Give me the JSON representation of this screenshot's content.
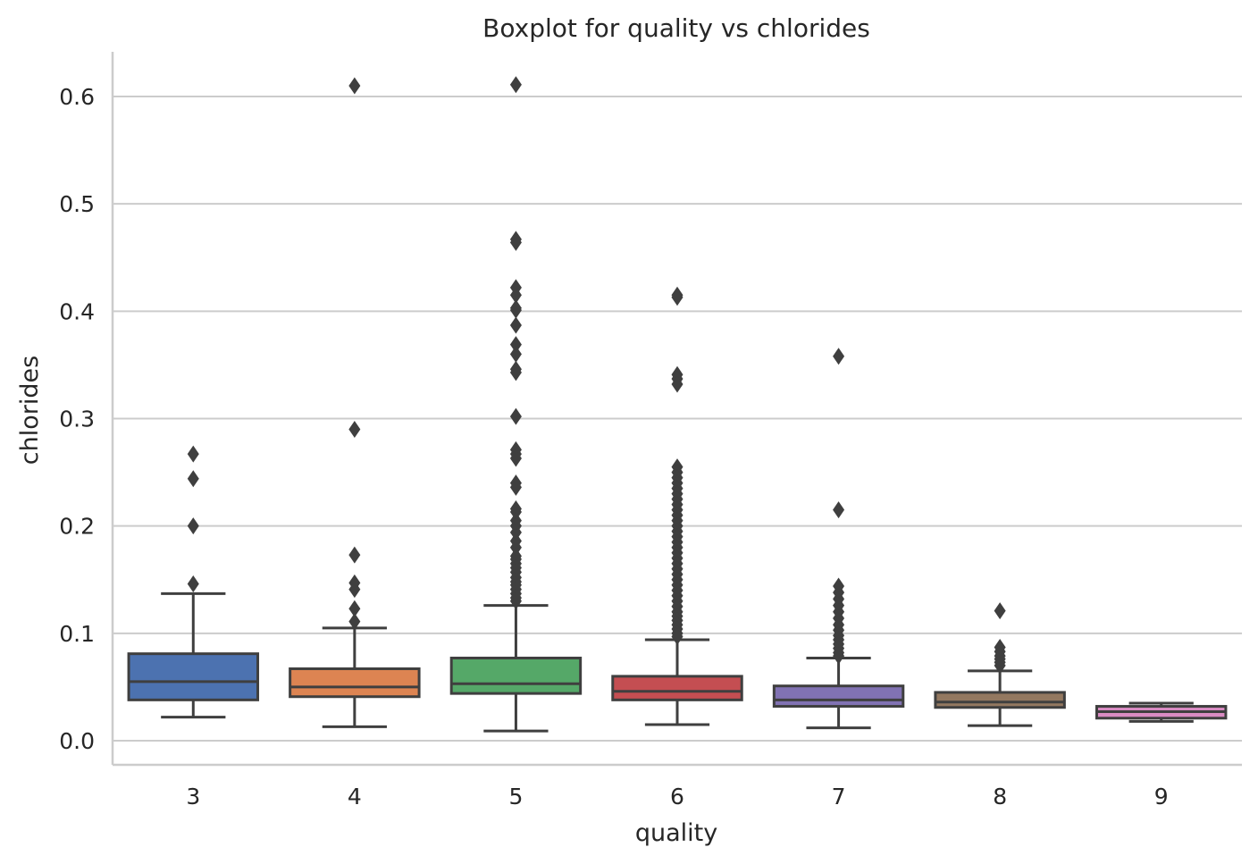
{
  "chart_data": {
    "type": "boxplot",
    "title": "Boxplot for quality vs chlorides",
    "xlabel": "quality",
    "ylabel": "chlorides",
    "ylim": [
      -0.021,
      0.64
    ],
    "yticks": [
      0.0,
      0.1,
      0.2,
      0.3,
      0.4,
      0.5,
      0.6
    ],
    "ytick_labels": [
      "0.0",
      "0.1",
      "0.2",
      "0.3",
      "0.4",
      "0.5",
      "0.6"
    ],
    "grid": true,
    "legend": "none",
    "categories": [
      "3",
      "4",
      "5",
      "6",
      "7",
      "8",
      "9"
    ],
    "boxes": [
      {
        "category": "3",
        "color": "#4c72b0",
        "whisker_low": 0.022,
        "q1": 0.038,
        "median": 0.055,
        "q3": 0.081,
        "whisker_high": 0.137,
        "outliers": [
          0.267,
          0.244,
          0.2,
          0.146
        ]
      },
      {
        "category": "4",
        "color": "#dd8452",
        "whisker_low": 0.013,
        "q1": 0.041,
        "median": 0.05,
        "q3": 0.067,
        "whisker_high": 0.105,
        "outliers": [
          0.61,
          0.29,
          0.173,
          0.147,
          0.141,
          0.123,
          0.111
        ]
      },
      {
        "category": "5",
        "color": "#55a868",
        "whisker_low": 0.009,
        "q1": 0.044,
        "median": 0.053,
        "q3": 0.077,
        "whisker_high": 0.126,
        "outliers": [
          0.611,
          0.467,
          0.464,
          0.422,
          0.415,
          0.403,
          0.401,
          0.387,
          0.369,
          0.36,
          0.346,
          0.343,
          0.302,
          0.271,
          0.267,
          0.263,
          0.24,
          0.236,
          0.216,
          0.213,
          0.205,
          0.2,
          0.194,
          0.186,
          0.18,
          0.172,
          0.169,
          0.165,
          0.161,
          0.157,
          0.152,
          0.148,
          0.145,
          0.141,
          0.137,
          0.133,
          0.13
        ]
      },
      {
        "category": "6",
        "color": "#c44e52",
        "whisker_low": 0.015,
        "q1": 0.038,
        "median": 0.046,
        "q3": 0.06,
        "whisker_high": 0.094,
        "outliers": [
          0.415,
          0.413,
          0.341,
          0.337,
          0.332,
          0.255,
          0.25,
          0.245,
          0.24,
          0.235,
          0.23,
          0.225,
          0.22,
          0.215,
          0.21,
          0.205,
          0.2,
          0.195,
          0.19,
          0.185,
          0.18,
          0.175,
          0.17,
          0.165,
          0.16,
          0.155,
          0.15,
          0.145,
          0.14,
          0.135,
          0.13,
          0.125,
          0.12,
          0.116,
          0.112,
          0.108,
          0.104,
          0.1,
          0.097
        ]
      },
      {
        "category": "7",
        "color": "#8172b3",
        "whisker_low": 0.012,
        "q1": 0.032,
        "median": 0.038,
        "q3": 0.051,
        "whisker_high": 0.077,
        "outliers": [
          0.358,
          0.215,
          0.144,
          0.138,
          0.132,
          0.126,
          0.12,
          0.114,
          0.108,
          0.103,
          0.098,
          0.094,
          0.09,
          0.086,
          0.082,
          0.079
        ]
      },
      {
        "category": "8",
        "color": "#937860",
        "whisker_low": 0.014,
        "q1": 0.031,
        "median": 0.036,
        "q3": 0.045,
        "whisker_high": 0.065,
        "outliers": [
          0.121,
          0.087,
          0.083,
          0.079,
          0.076,
          0.073,
          0.07
        ]
      },
      {
        "category": "9",
        "color": "#da8bc3",
        "whisker_low": 0.018,
        "q1": 0.021,
        "median": 0.027,
        "q3": 0.032,
        "whisker_high": 0.035,
        "outliers": []
      }
    ]
  }
}
